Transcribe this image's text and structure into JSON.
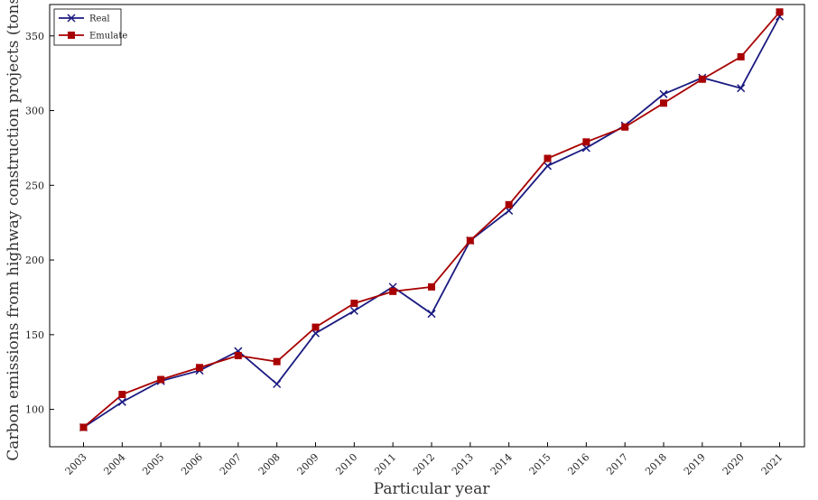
{
  "chart_data": {
    "type": "line",
    "title": "",
    "xlabel": "Particular year",
    "ylabel": "Carbon emissions from highway construction projects  (tons)",
    "categories": [
      "2003",
      "2004",
      "2005",
      "2006",
      "2007",
      "2008",
      "2009",
      "2010",
      "2011",
      "2012",
      "2013",
      "2014",
      "2015",
      "2016",
      "2017",
      "2018",
      "2019",
      "2020",
      "2021"
    ],
    "ylim": [
      75,
      371
    ],
    "yticks": [
      100,
      150,
      200,
      250,
      300,
      350
    ],
    "grid": false,
    "legend_position": "top-left",
    "series": [
      {
        "name": "Real",
        "color": "#1a1a80",
        "marker": "x",
        "values": [
          88,
          105,
          119,
          126,
          139,
          117,
          151,
          166,
          182,
          164,
          213,
          233,
          263,
          275,
          290,
          311,
          322,
          315,
          363
        ]
      },
      {
        "name": "Emulate",
        "color": "#a80000",
        "marker": "square",
        "values": [
          88,
          110,
          120,
          128,
          136,
          132,
          155,
          171,
          179,
          182,
          213,
          237,
          268,
          279,
          289,
          305,
          321,
          336,
          366
        ]
      }
    ]
  }
}
